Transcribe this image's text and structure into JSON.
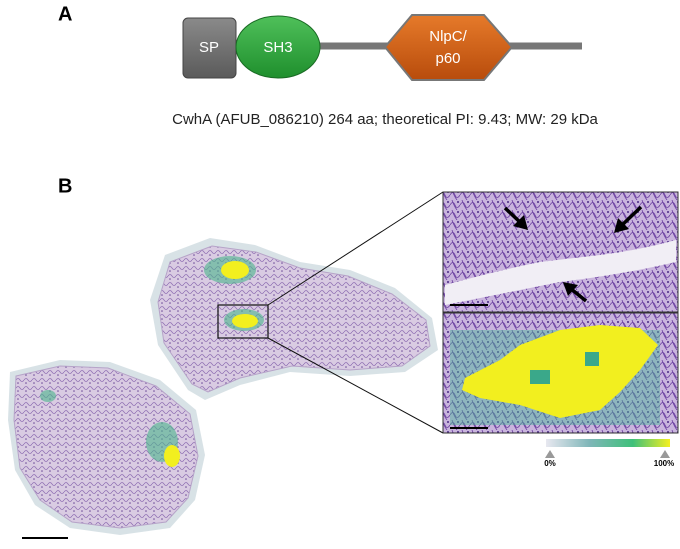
{
  "panel_a": {
    "label": "A",
    "domains": [
      "SP",
      "SH3",
      [
        "NlpC/",
        "p60"
      ]
    ],
    "caption": "CwhA (AFUB_086210) 264 aa; theoretical PI: 9.43;  MW: 29 kDa"
  },
  "panel_b": {
    "label": "B",
    "scale_labels": [
      "0%",
      "100%"
    ]
  }
}
